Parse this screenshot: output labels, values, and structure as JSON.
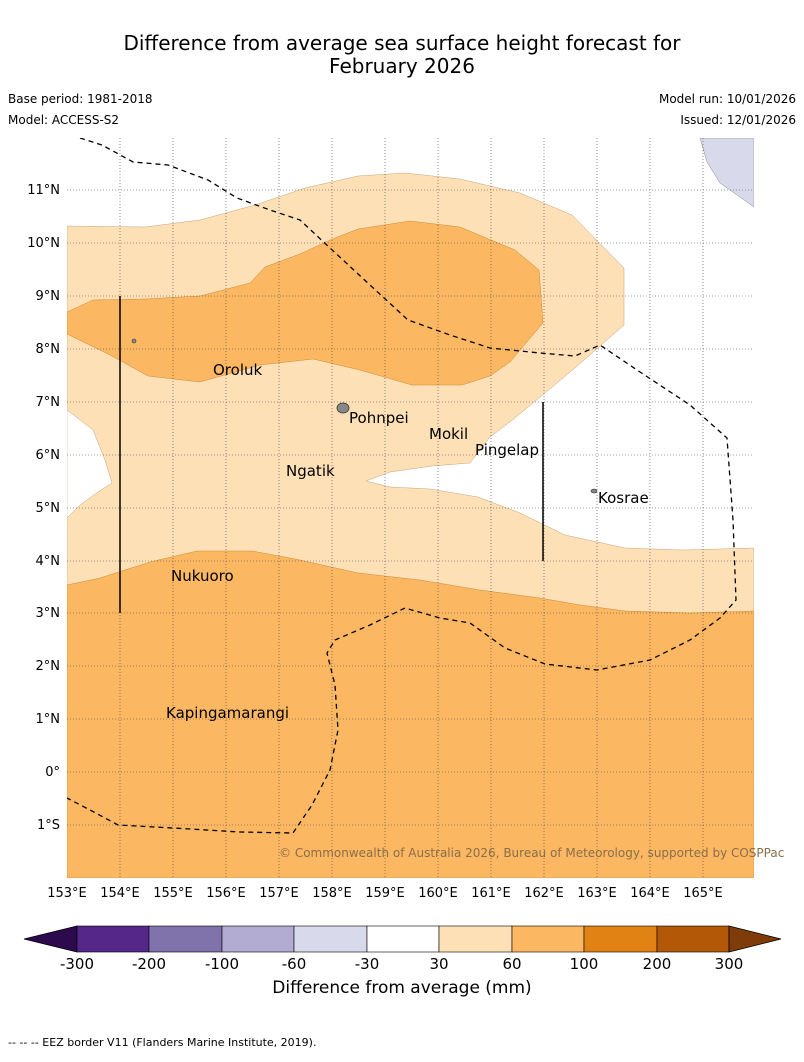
{
  "title": {
    "line1": "Difference from average sea surface height forecast for",
    "line2": "February 2026"
  },
  "meta": {
    "base_period": "Base period: 1981-2018",
    "model": "Model: ACCESS-S2",
    "model_run": "Model run: 10/01/2026",
    "issued": "Issued: 12/01/2026"
  },
  "axes": {
    "lat_labels": [
      "11°N",
      "10°N",
      "9°N",
      "8°N",
      "7°N",
      "6°N",
      "5°N",
      "4°N",
      "3°N",
      "2°N",
      "1°N",
      "0°",
      "1°S"
    ],
    "lon_labels": [
      "153°E",
      "154°E",
      "155°E",
      "156°E",
      "157°E",
      "158°E",
      "159°E",
      "160°E",
      "161°E",
      "162°E",
      "163°E",
      "164°E",
      "165°E"
    ]
  },
  "places": [
    {
      "name": "Oroluk"
    },
    {
      "name": "Pohnpei"
    },
    {
      "name": "Mokil"
    },
    {
      "name": "Pingelap"
    },
    {
      "name": "Ngatik"
    },
    {
      "name": "Kosrae"
    },
    {
      "name": "Nukuoro"
    },
    {
      "name": "Kapingamarangi"
    }
  ],
  "copyright": "© Commonwealth of Australia 2026, Bureau of Meteorology, supported by COSPPac",
  "colorbar": {
    "title": "Difference from average (mm)",
    "ticks": [
      "-300",
      "-200",
      "-100",
      "-60",
      "-30",
      "30",
      "60",
      "100",
      "200",
      "300"
    ],
    "colors": [
      "#2d0a4e",
      "#542788",
      "#8073ac",
      "#b2abd2",
      "#d8daeb",
      "#ffffff",
      "#fee0b6",
      "#fbb761",
      "#e08214",
      "#b35806",
      "#7f3b08"
    ]
  },
  "footer": "--  --  -- EEZ border V11 (Flanders Marine Institute, 2019)."
}
